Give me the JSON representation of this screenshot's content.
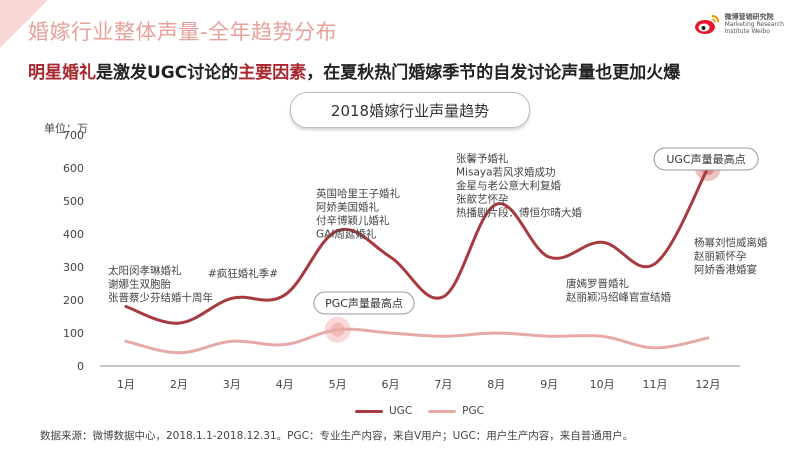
{
  "slide": {
    "title": "婚嫁行业整体声量-全年趋势分布",
    "brand_cn": "微博营销研究院",
    "brand_en1": "Marketing Research",
    "brand_en2": "Institute Weibo",
    "headline_part1": "明星婚礼",
    "headline_part2": "是激发UGC讨论的",
    "headline_part3": "主要因素",
    "headline_part4": "，在夏秋热门婚嫁季节的自发讨论声量也更加火爆",
    "source": "数据来源：微博数据中心，2018.1.1-2018.12.31。PGC：专业生产内容，来自V用户；UGC：用户生产内容，来自普通用户。"
  },
  "colors": {
    "ugc": "#a63a3e",
    "pgc": "#e5aaa8",
    "accent": "#a8262d",
    "title_pink": "#e8a09b"
  },
  "chart_data": {
    "type": "line",
    "title": "2018婚嫁行业声量趋势",
    "unit_label": "单位：万",
    "categories": [
      "1月",
      "2月",
      "3月",
      "4月",
      "5月",
      "6月",
      "7月",
      "8月",
      "9月",
      "10月",
      "11月",
      "12月"
    ],
    "y_ticks": [
      0,
      100,
      200,
      300,
      400,
      500,
      600,
      700
    ],
    "ylim": [
      0,
      700
    ],
    "grid": false,
    "legend_position": "bottom",
    "series": [
      {
        "name": "UGC",
        "values": [
          180,
          130,
          205,
          215,
          410,
          330,
          210,
          490,
          330,
          375,
          310,
          600
        ]
      },
      {
        "name": "PGC",
        "values": [
          75,
          40,
          75,
          65,
          110,
          100,
          90,
          100,
          90,
          90,
          55,
          85
        ]
      }
    ],
    "annotations": [
      {
        "lines": [
          "太阳闵孝琳婚礼",
          "谢娜生双胞胎",
          "张晋蔡少芬结婚十周年"
        ]
      },
      {
        "lines": [
          "#疯狂婚礼季#"
        ]
      },
      {
        "lines": [
          "英国哈里王子婚礼",
          "阿娇美国婚礼",
          "付辛博颖儿婚礼",
          "GAI周延婚礼"
        ]
      },
      {
        "lines": [
          "张馨予婚礼",
          "Misaya若风求婚成功",
          "金星与老公意大利复婚",
          "张歆艺怀孕",
          "热播剧片段：傅恒尔晴大婚"
        ]
      },
      {
        "lines": [
          "唐嫣罗晋婚礼",
          "赵丽颖冯绍峰官宣结婚"
        ]
      },
      {
        "lines": [
          "杨幂刘恺威离婚",
          "赵丽颖怀孕",
          "阿娇香港婚宴"
        ]
      }
    ],
    "callouts": {
      "ugc_peak": "UGC声量最高点",
      "pgc_peak": "PGC声量最高点"
    }
  }
}
